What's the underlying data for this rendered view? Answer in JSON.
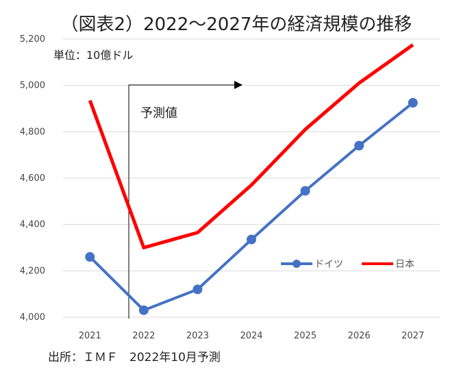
{
  "chart_data": {
    "type": "line",
    "title": "（図表2）2022〜2027年の経済規模の推移",
    "unit_label": "単位：10億ドル",
    "forecast_label": "予測値",
    "source": "出所：ＩＭＦ　2022年10月予測",
    "categories": [
      "2021",
      "2022",
      "2023",
      "2024",
      "2025",
      "2026",
      "2027"
    ],
    "y_ticks": [
      "4,000",
      "4,200",
      "4,400",
      "4,600",
      "4,800",
      "5,000",
      "5,200"
    ],
    "ylim": [
      4000,
      5200
    ],
    "grid": true,
    "legend_position": "right",
    "series": [
      {
        "name": "ドイツ",
        "color": "#4472C4",
        "marker": "circle",
        "values": [
          4260,
          4030,
          4120,
          4335,
          4545,
          4740,
          4925
        ]
      },
      {
        "name": "日本",
        "color": "#FF0000",
        "marker": "none",
        "values": [
          4935,
          4300,
          4365,
          4570,
          4810,
          5010,
          5175
        ]
      }
    ]
  }
}
